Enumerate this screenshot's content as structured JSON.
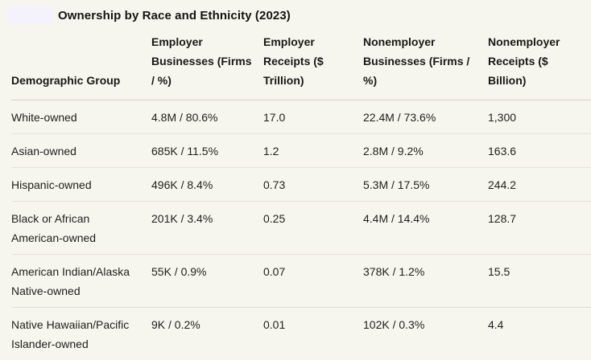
{
  "page": {
    "title": "Ownership by Race and Ethnicity (2023)"
  },
  "colors": {
    "background": "#f7f6ee",
    "badge": "#f4f3fc",
    "text": "#1b1b1b",
    "header_divider": "#d3d1c8",
    "row_divider": "#e3e1d8"
  },
  "chart_data": {
    "type": "table",
    "title": "Ownership by Race and Ethnicity (2023)",
    "columns": [
      "Demographic Group",
      "Employer Businesses (Firms / %)",
      "Employer Receipts ($ Trillion)",
      "Nonemployer Businesses (Firms / %)",
      "Nonemployer Receipts ($ Billion)"
    ],
    "rows": [
      [
        "White-owned",
        "4.8M / 80.6%",
        "17.0",
        "22.4M / 73.6%",
        "1,300"
      ],
      [
        "Asian-owned",
        "685K / 11.5%",
        "1.2",
        "2.8M / 9.2%",
        "163.6"
      ],
      [
        "Hispanic-owned",
        "496K / 8.4%",
        "0.73",
        "5.3M / 17.5%",
        "244.2"
      ],
      [
        "Black or African American-owned",
        "201K / 3.4%",
        "0.25",
        "4.4M / 14.4%",
        "128.7"
      ],
      [
        "American Indian/Alaska Native-owned",
        "55K / 0.9%",
        "0.07",
        "378K / 1.2%",
        "15.5"
      ],
      [
        "Native Hawaiian/Pacific Islander-owned",
        "9K / 0.2%",
        "0.01",
        "102K / 0.3%",
        "4.4"
      ]
    ]
  }
}
